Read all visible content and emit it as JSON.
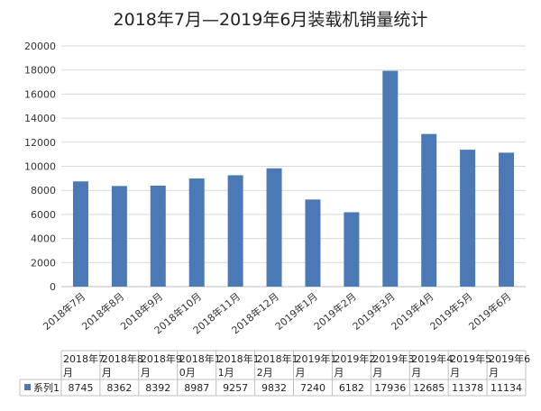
{
  "chart_data": {
    "type": "bar",
    "title": "2018年7月—2019年6月装载机销量统计",
    "categories": [
      "2018年7月",
      "2018年8月",
      "2018年9月",
      "2018年10月",
      "2018年11月",
      "2018年12月",
      "2019年1月",
      "2019年2月",
      "2019年3月",
      "2019年4月",
      "2019年5月",
      "2019年6月"
    ],
    "table_headers": [
      [
        "2018年7",
        "月"
      ],
      [
        "2018年8",
        "月"
      ],
      [
        "2018年9",
        "月"
      ],
      [
        "2018年1",
        "0月"
      ],
      [
        "2018年1",
        "1月"
      ],
      [
        "2018年1",
        "2月"
      ],
      [
        "2019年1",
        "月"
      ],
      [
        "2019年2",
        "月"
      ],
      [
        "2019年3",
        "月"
      ],
      [
        "2019年4",
        "月"
      ],
      [
        "2019年5",
        "月"
      ],
      [
        "2019年6",
        "月"
      ]
    ],
    "series": [
      {
        "name": "系列1",
        "values": [
          8745,
          8362,
          8392,
          8987,
          9257,
          9832,
          7240,
          6182,
          17936,
          12685,
          11378,
          11134
        ]
      }
    ],
    "ylim": [
      0,
      20000
    ],
    "yticks": [
      "0",
      "2000",
      "4000",
      "6000",
      "8000",
      "10000",
      "12000",
      "14000",
      "16000",
      "18000",
      "20000"
    ],
    "grid": true,
    "colors": {
      "bar": "#4a79b5",
      "grid": "#d9d9d9",
      "axis": "#bfbfbf"
    }
  }
}
